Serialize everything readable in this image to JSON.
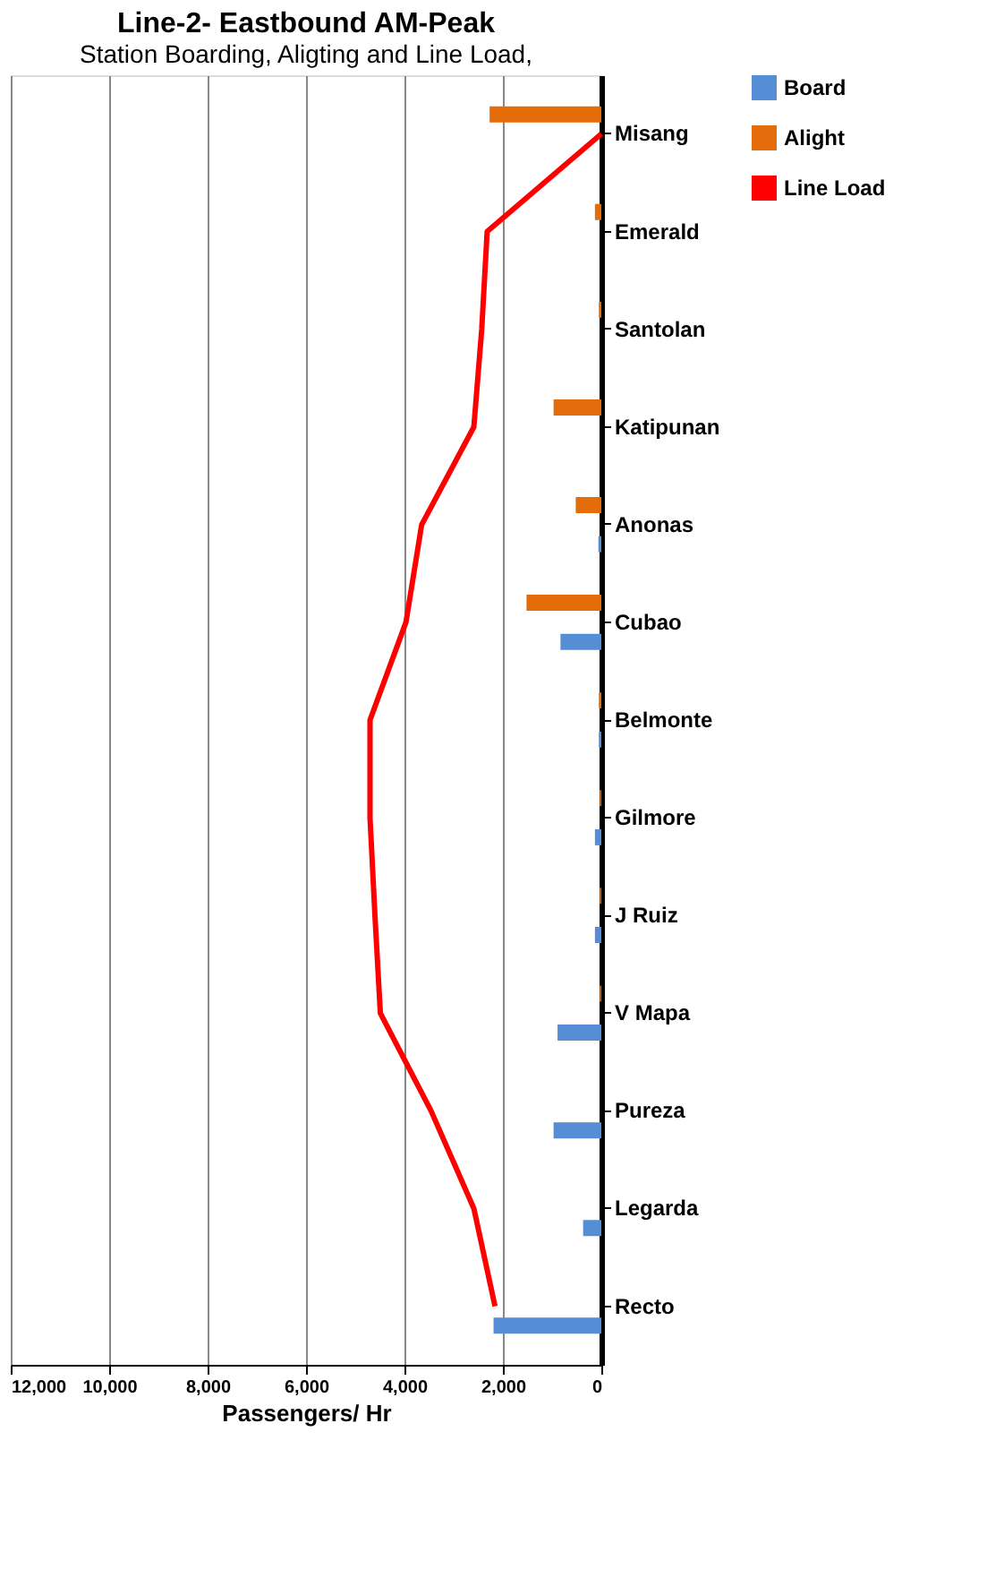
{
  "chart_data": {
    "type": "bar",
    "orientation": "horizontal",
    "title": "Line-2- Eastbound AM-Peak",
    "subtitle": "Station Boarding, Aligting and Line Load,",
    "xlabel": "Passengers/ Hr",
    "categories": [
      "Misang",
      "Emerald",
      "Santolan",
      "Katipunan",
      "Anonas",
      "Cubao",
      "Belmonte",
      "Gilmore",
      "J Ruiz",
      "V Mapa",
      "Pureza",
      "Legarda",
      "Recto"
    ],
    "series": [
      {
        "name": "Board",
        "color": "#558ed5",
        "values": [
          0,
          0,
          0,
          0,
          60,
          830,
          50,
          130,
          130,
          890,
          970,
          370,
          2190
        ]
      },
      {
        "name": "Alight",
        "color": "#e46c0a",
        "values": [
          2270,
          130,
          50,
          970,
          520,
          1520,
          50,
          30,
          30,
          30,
          0,
          0,
          0
        ]
      },
      {
        "name": "Line Load",
        "type": "line",
        "color": "#ff0000",
        "values": [
          0,
          2320,
          2430,
          2590,
          3650,
          3970,
          4700,
          4700,
          4600,
          4490,
          3460,
          2590,
          2160
        ]
      }
    ],
    "xlim": [
      12000,
      0
    ],
    "xticks": [
      {
        "value": 12000,
        "label": "12,000"
      },
      {
        "value": 10000,
        "label": "10,000"
      },
      {
        "value": 8000,
        "label": "8,000"
      },
      {
        "value": 6000,
        "label": "6,000"
      },
      {
        "value": 4000,
        "label": "4,000"
      },
      {
        "value": 2000,
        "label": "2,000"
      },
      0
    ],
    "grid": "x",
    "legend": "right",
    "marker": "none"
  }
}
